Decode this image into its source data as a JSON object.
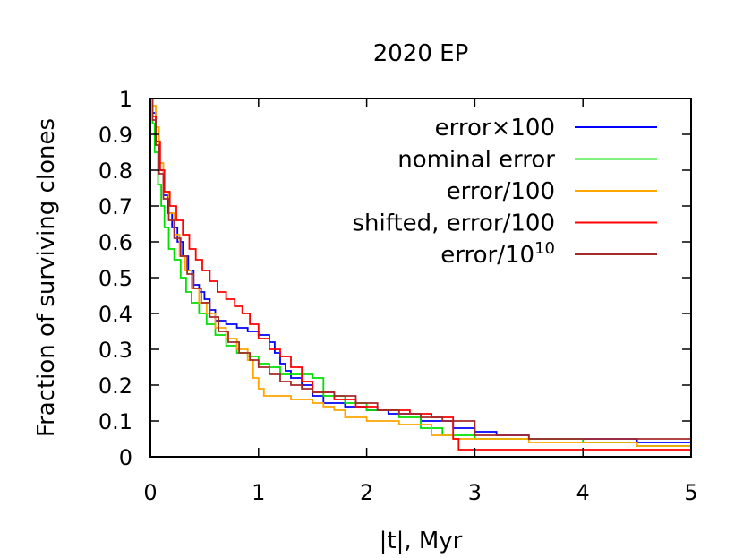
{
  "chart_data": {
    "type": "line",
    "title": "2020 EP",
    "xlabel": "|t|, Myr",
    "ylabel": "Fraction of surviving clones",
    "xlim": [
      0,
      5
    ],
    "ylim": [
      0,
      1
    ],
    "xticks": [
      "0",
      "1",
      "2",
      "3",
      "4",
      "5"
    ],
    "yticks": [
      "0",
      "0.1",
      "0.2",
      "0.3",
      "0.4",
      "0.5",
      "0.6",
      "0.7",
      "0.8",
      "0.9",
      "1"
    ],
    "grid": false,
    "legend_position": "top-right",
    "step": true,
    "series": [
      {
        "name": "error×100",
        "name_parts": [
          "error×100",
          ""
        ],
        "color": "#0000ff",
        "x": [
          0,
          0.02,
          0.05,
          0.08,
          0.12,
          0.16,
          0.2,
          0.25,
          0.3,
          0.35,
          0.4,
          0.45,
          0.5,
          0.55,
          0.6,
          0.7,
          0.8,
          0.9,
          1.0,
          1.1,
          1.15,
          1.2,
          1.25,
          1.3,
          1.4,
          1.5,
          1.6,
          1.8,
          2.0,
          2.2,
          2.5,
          2.8,
          3.0,
          3.2,
          3.5,
          4.0,
          4.5,
          5.0
        ],
        "y": [
          1,
          0.96,
          0.88,
          0.8,
          0.73,
          0.68,
          0.64,
          0.6,
          0.56,
          0.52,
          0.48,
          0.46,
          0.44,
          0.41,
          0.38,
          0.37,
          0.36,
          0.35,
          0.34,
          0.32,
          0.29,
          0.26,
          0.24,
          0.22,
          0.2,
          0.17,
          0.15,
          0.14,
          0.13,
          0.12,
          0.1,
          0.08,
          0.07,
          0.06,
          0.05,
          0.05,
          0.04,
          0.04
        ]
      },
      {
        "name": "nominal error",
        "name_parts": [
          "nominal error",
          ""
        ],
        "color": "#00e000",
        "x": [
          0,
          0.02,
          0.04,
          0.07,
          0.1,
          0.13,
          0.17,
          0.22,
          0.28,
          0.33,
          0.38,
          0.45,
          0.52,
          0.6,
          0.7,
          0.8,
          0.9,
          1.0,
          1.1,
          1.2,
          1.3,
          1.4,
          1.5,
          1.6,
          1.8,
          2.0,
          2.3,
          2.5,
          2.7,
          3.0,
          3.5,
          4.0,
          4.5,
          5.0
        ],
        "y": [
          1,
          0.93,
          0.85,
          0.76,
          0.7,
          0.64,
          0.58,
          0.55,
          0.5,
          0.46,
          0.43,
          0.4,
          0.37,
          0.34,
          0.31,
          0.29,
          0.28,
          0.26,
          0.25,
          0.23,
          0.23,
          0.23,
          0.22,
          0.17,
          0.15,
          0.13,
          0.11,
          0.08,
          0.06,
          0.05,
          0.05,
          0.04,
          0.03,
          0.03
        ]
      },
      {
        "name": "error/100",
        "name_parts": [
          "error/100",
          ""
        ],
        "color": "#ffa500",
        "x": [
          0,
          0.02,
          0.05,
          0.08,
          0.12,
          0.17,
          0.22,
          0.27,
          0.32,
          0.38,
          0.45,
          0.52,
          0.6,
          0.7,
          0.8,
          0.9,
          0.95,
          1.0,
          1.05,
          1.1,
          1.2,
          1.3,
          1.5,
          1.6,
          1.7,
          1.8,
          2.0,
          2.3,
          2.6,
          2.8,
          3.0,
          3.5,
          4.0,
          4.5,
          5.0
        ],
        "y": [
          1,
          0.98,
          0.92,
          0.82,
          0.74,
          0.68,
          0.62,
          0.56,
          0.52,
          0.47,
          0.43,
          0.4,
          0.36,
          0.33,
          0.3,
          0.27,
          0.22,
          0.19,
          0.17,
          0.17,
          0.17,
          0.16,
          0.15,
          0.14,
          0.13,
          0.11,
          0.1,
          0.09,
          0.06,
          0.05,
          0.05,
          0.04,
          0.04,
          0.03,
          0.03
        ]
      },
      {
        "name": "shifted, error/100",
        "name_parts": [
          "shifted, error/100",
          ""
        ],
        "color": "#ff0000",
        "x": [
          0,
          0.02,
          0.05,
          0.09,
          0.13,
          0.18,
          0.24,
          0.3,
          0.36,
          0.42,
          0.48,
          0.55,
          0.62,
          0.7,
          0.78,
          0.85,
          0.92,
          1.0,
          1.1,
          1.2,
          1.3,
          1.4,
          1.5,
          1.7,
          1.9,
          2.1,
          2.4,
          2.6,
          2.8,
          2.85,
          3.0,
          3.5,
          4.0,
          4.5,
          5.0
        ],
        "y": [
          1,
          0.95,
          0.88,
          0.8,
          0.74,
          0.7,
          0.66,
          0.62,
          0.58,
          0.55,
          0.52,
          0.49,
          0.46,
          0.44,
          0.42,
          0.4,
          0.37,
          0.33,
          0.3,
          0.28,
          0.25,
          0.21,
          0.18,
          0.16,
          0.14,
          0.13,
          0.12,
          0.11,
          0.05,
          0.02,
          0.02,
          0.02,
          0.02,
          0.02,
          0.02
        ]
      },
      {
        "name": "error/10^10",
        "name_parts": [
          "error/10",
          "10"
        ],
        "color": "#a52a2a",
        "x": [
          0,
          0.02,
          0.05,
          0.08,
          0.12,
          0.17,
          0.22,
          0.28,
          0.34,
          0.4,
          0.47,
          0.55,
          0.63,
          0.72,
          0.82,
          0.92,
          1.0,
          1.1,
          1.2,
          1.3,
          1.4,
          1.5,
          1.7,
          1.9,
          2.1,
          2.3,
          2.5,
          2.7,
          3.0,
          3.5,
          4.0,
          4.5,
          5.0
        ],
        "y": [
          1,
          0.94,
          0.87,
          0.79,
          0.72,
          0.66,
          0.61,
          0.56,
          0.51,
          0.47,
          0.43,
          0.39,
          0.35,
          0.32,
          0.29,
          0.27,
          0.25,
          0.23,
          0.21,
          0.2,
          0.19,
          0.18,
          0.17,
          0.15,
          0.13,
          0.12,
          0.11,
          0.1,
          0.06,
          0.05,
          0.05,
          0.05,
          0.05
        ]
      }
    ]
  }
}
